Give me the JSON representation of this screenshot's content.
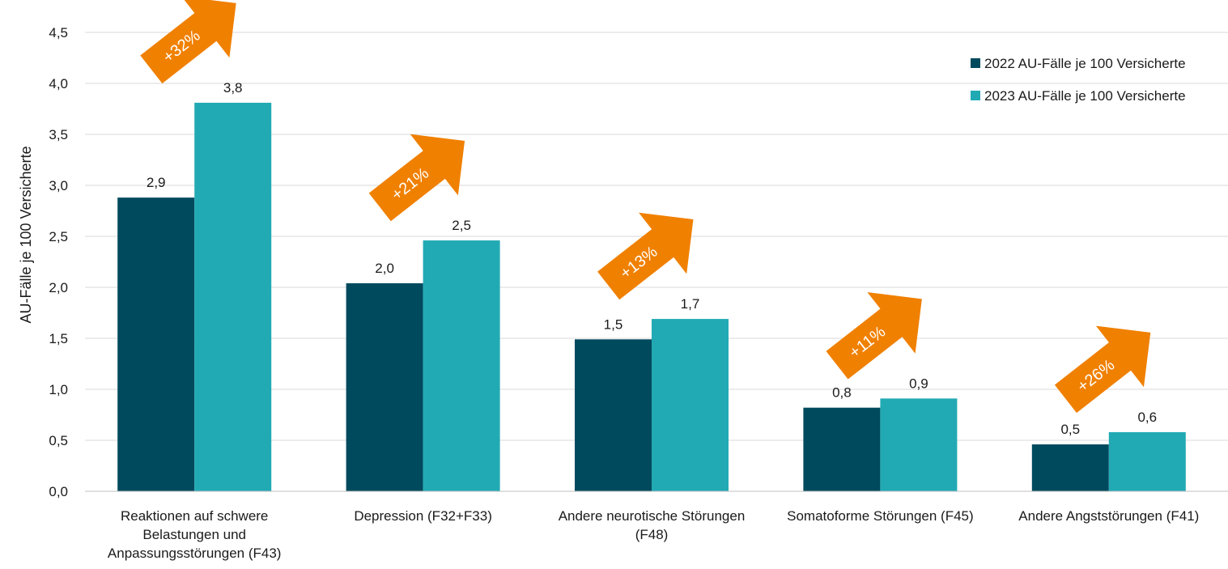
{
  "chart_data": {
    "type": "bar",
    "title": "",
    "ylabel": "AU-Fälle je 100 Versicherte",
    "xlabel": "",
    "ylim": [
      0,
      4.5
    ],
    "ytick_values": [
      0,
      0.5,
      1.0,
      1.5,
      2.0,
      2.5,
      3.0,
      3.5,
      4.0,
      4.5
    ],
    "ytick_labels": [
      "0,0",
      "0,5",
      "1,0",
      "1,5",
      "2,0",
      "2,5",
      "3,0",
      "3,5",
      "4,0",
      "4,5"
    ],
    "grid": true,
    "legend_position": "top-right",
    "categories": [
      [
        "Reaktionen auf schwere",
        "Belastungen und",
        "Anpassungsstörungen (F43)"
      ],
      [
        "Depression (F32+F33)"
      ],
      [
        "Andere neurotische Störungen",
        "(F48)"
      ],
      [
        "Somatoforme Störungen (F45)"
      ],
      [
        "Andere Angststörungen (F41)"
      ]
    ],
    "series": [
      {
        "name": "2022 AU-Fälle je 100 Versicherte",
        "color": "#004a5e",
        "values": [
          2.88,
          2.04,
          1.49,
          0.82,
          0.46
        ],
        "labels": [
          "2,9",
          "2,0",
          "1,5",
          "0,8",
          "0,5"
        ]
      },
      {
        "name": "2023 AU-Fälle je 100 Versicherte",
        "color": "#22aab4",
        "values": [
          3.81,
          2.46,
          1.69,
          0.91,
          0.58
        ],
        "labels": [
          "3,8",
          "2,5",
          "1,7",
          "0,9",
          "0,6"
        ]
      }
    ],
    "annotations": {
      "color": "#f08000",
      "items": [
        "+32%",
        "+21%",
        "+13%",
        "+11%",
        "+26%"
      ]
    }
  }
}
